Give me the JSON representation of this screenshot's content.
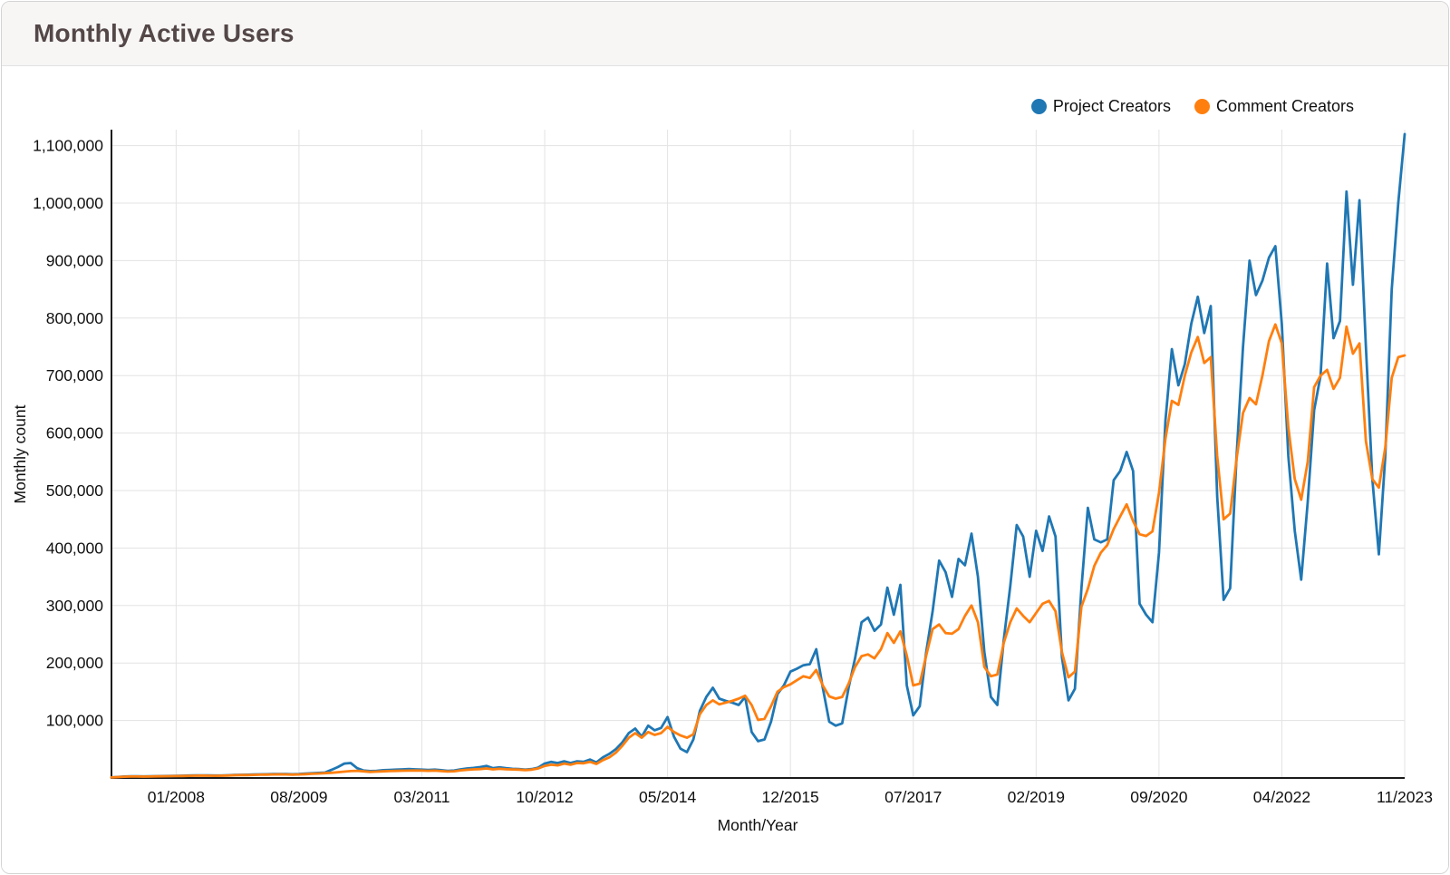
{
  "header": {
    "title": "Monthly Active Users"
  },
  "legend": {
    "items": [
      {
        "label": "Project Creators",
        "color": "#1f77b4"
      },
      {
        "label": "Comment Creators",
        "color": "#ff7f0e"
      }
    ]
  },
  "chart_data": {
    "type": "line",
    "title": "Monthly Active Users",
    "xlabel": "Month/Year",
    "ylabel": "Monthly count",
    "x_start": "03/2007",
    "x_end": "11/2023",
    "x_frequency": "monthly",
    "points_per_series": 201,
    "ylim": [
      0,
      1135000
    ],
    "y_tick_step": 100000,
    "y_tick_max": 1100000,
    "grid": true,
    "legend_position": "top-right",
    "x_ticks": [
      {
        "i": 10,
        "label": "01/2008"
      },
      {
        "i": 29,
        "label": "08/2009"
      },
      {
        "i": 48,
        "label": "03/2011"
      },
      {
        "i": 67,
        "label": "10/2012"
      },
      {
        "i": 86,
        "label": "05/2014"
      },
      {
        "i": 105,
        "label": "12/2015"
      },
      {
        "i": 124,
        "label": "07/2017"
      },
      {
        "i": 143,
        "label": "02/2019"
      },
      {
        "i": 162,
        "label": "09/2020"
      },
      {
        "i": 181,
        "label": "04/2022"
      },
      {
        "i": 200,
        "label": "11/2023"
      }
    ],
    "series": [
      {
        "name": "Project Creators",
        "color": "#1f77b4",
        "values": [
          1000,
          1800,
          2600,
          3000,
          2800,
          2700,
          2900,
          3100,
          3300,
          3400,
          3700,
          4000,
          4300,
          4500,
          4600,
          4400,
          4200,
          4300,
          4800,
          5200,
          5500,
          5600,
          6000,
          6300,
          6500,
          6800,
          7000,
          6800,
          6500,
          6800,
          7500,
          8200,
          8800,
          9500,
          14000,
          19000,
          25000,
          26000,
          17000,
          13000,
          12000,
          12500,
          13500,
          14000,
          14500,
          15000,
          15500,
          15000,
          14500,
          14000,
          14500,
          13500,
          12500,
          13000,
          15000,
          16500,
          17500,
          19000,
          21000,
          17000,
          18500,
          17000,
          16000,
          15500,
          14500,
          15500,
          18000,
          25000,
          28000,
          26000,
          29000,
          26000,
          29000,
          28000,
          32000,
          27000,
          36000,
          42000,
          50000,
          62000,
          78000,
          86000,
          72000,
          91000,
          83000,
          87000,
          106000,
          72000,
          51000,
          45000,
          67000,
          117000,
          141000,
          157000,
          138000,
          134000,
          131000,
          127000,
          141000,
          80000,
          64000,
          67000,
          98000,
          146000,
          161000,
          185000,
          190000,
          196000,
          198000,
          224000,
          157000,
          98000,
          91000,
          95000,
          157000,
          208000,
          271000,
          279000,
          256000,
          267000,
          331000,
          284000,
          336000,
          161000,
          109000,
          125000,
          219000,
          290000,
          378000,
          358000,
          315000,
          381000,
          370000,
          425000,
          350000,
          219000,
          141000,
          127000,
          240000,
          334000,
          440000,
          420000,
          350000,
          430000,
          395000,
          455000,
          420000,
          210000,
          135000,
          155000,
          330000,
          470000,
          415000,
          410000,
          415000,
          518000,
          534000,
          567000,
          534000,
          303000,
          284000,
          271000,
          392000,
          622000,
          746000,
          683000,
          720000,
          790000,
          837000,
          774000,
          821000,
          490000,
          310000,
          330000,
          560000,
          750000,
          900000,
          840000,
          865000,
          905000,
          925000,
          790000,
          560000,
          430000,
          345000,
          480000,
          640000,
          700000,
          895000,
          765000,
          795000,
          1020000,
          858000,
          1005000,
          750000,
          520000,
          389000,
          560000,
          850000,
          1000000,
          1120000
        ]
      },
      {
        "name": "Comment Creators",
        "color": "#ff7f0e",
        "values": [
          900,
          1500,
          2200,
          2600,
          2500,
          2400,
          2600,
          2800,
          3000,
          3100,
          3300,
          3500,
          3800,
          4000,
          4100,
          3900,
          3800,
          3900,
          4300,
          4700,
          5000,
          5100,
          5400,
          5700,
          5900,
          6100,
          6300,
          6100,
          5900,
          6100,
          6700,
          7300,
          7800,
          8400,
          9000,
          10000,
          11000,
          12000,
          12500,
          11500,
          10500,
          11000,
          11500,
          12000,
          12300,
          12600,
          12800,
          13000,
          12800,
          12500,
          12800,
          12000,
          11200,
          11600,
          13200,
          14200,
          15000,
          15500,
          16500,
          15000,
          16000,
          15200,
          14800,
          14500,
          13800,
          14500,
          16500,
          21000,
          23000,
          22000,
          25000,
          23000,
          26000,
          25500,
          28000,
          24500,
          31000,
          36000,
          44000,
          56000,
          70000,
          78000,
          70000,
          80000,
          75000,
          78000,
          89000,
          80000,
          74000,
          70000,
          76000,
          111000,
          127000,
          135000,
          128000,
          131000,
          134000,
          138000,
          143000,
          127000,
          101000,
          103000,
          125000,
          150000,
          158000,
          163000,
          170000,
          177000,
          174000,
          188000,
          161000,
          142000,
          138000,
          141000,
          164000,
          193000,
          212000,
          215000,
          208000,
          224000,
          252000,
          235000,
          255000,
          213000,
          161000,
          164000,
          213000,
          259000,
          267000,
          252000,
          251000,
          259000,
          282000,
          300000,
          271000,
          193000,
          177000,
          180000,
          235000,
          271000,
          295000,
          282000,
          271000,
          287000,
          303000,
          308000,
          290000,
          219000,
          175000,
          185000,
          298000,
          329000,
          369000,
          392000,
          405000,
          433000,
          455000,
          476000,
          447000,
          424000,
          421000,
          429000,
          496000,
          590000,
          656000,
          649000,
          700000,
          740000,
          767000,
          722000,
          732000,
          560000,
          450000,
          460000,
          555000,
          635000,
          661000,
          650000,
          700000,
          760000,
          789000,
          756000,
          610000,
          520000,
          484000,
          550000,
          680000,
          700000,
          710000,
          677000,
          696000,
          785000,
          738000,
          756000,
          586000,
          520000,
          505000,
          575000,
          696000,
          732000,
          735000
        ]
      }
    ],
    "style": {
      "grid_color": "#e3e3e3",
      "axis_color": "#1a1a1a",
      "tick_text_color": "#101010"
    }
  }
}
